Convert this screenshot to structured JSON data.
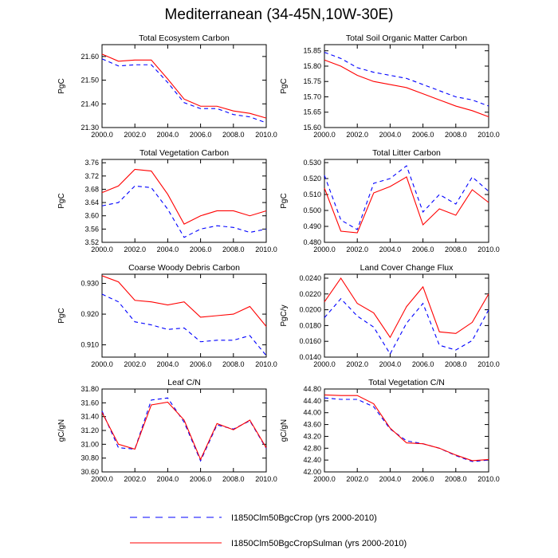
{
  "title": "Mediterranean (34-45N,10W-30E)",
  "legend": [
    {
      "label": "I1850Clm50BgcCrop (yrs 2000-2010)",
      "color": "#0000ff",
      "dash": true
    },
    {
      "label": "I1850Clm50BgcCropSulman (yrs 2000-2010)",
      "color": "#ff0000",
      "dash": false
    }
  ],
  "chart_data": [
    {
      "type": "line",
      "title": "Total Ecosystem Carbon",
      "ylabel": "PgC",
      "xlim": [
        2000,
        2010
      ],
      "xticks": [
        "2000.0",
        "2002.0",
        "2004.0",
        "2006.0",
        "2008.0",
        "2010.0"
      ],
      "ylim": [
        21.3,
        21.65
      ],
      "yticks": [
        "21.30",
        "21.40",
        "21.50",
        "21.60"
      ],
      "x": [
        2000,
        2001,
        2002,
        2003,
        2004,
        2005,
        2006,
        2007,
        2008,
        2009,
        2010
      ],
      "series": [
        {
          "values": [
            21.59,
            21.56,
            21.565,
            21.565,
            21.49,
            21.405,
            21.38,
            21.38,
            21.355,
            21.345,
            21.32
          ]
        },
        {
          "values": [
            21.61,
            21.58,
            21.585,
            21.585,
            21.505,
            21.42,
            21.39,
            21.39,
            21.37,
            21.36,
            21.34
          ]
        }
      ]
    },
    {
      "type": "line",
      "title": "Total Soil Organic Matter Carbon",
      "ylabel": "PgC",
      "xlim": [
        2000,
        2010
      ],
      "xticks": [
        "2000.0",
        "2002.0",
        "2004.0",
        "2006.0",
        "2008.0",
        "2010.0"
      ],
      "ylim": [
        15.6,
        15.87
      ],
      "yticks": [
        "15.60",
        "15.65",
        "15.70",
        "15.75",
        "15.80",
        "15.85"
      ],
      "x": [
        2000,
        2001,
        2002,
        2003,
        2004,
        2005,
        2006,
        2007,
        2008,
        2009,
        2010
      ],
      "series": [
        {
          "values": [
            15.845,
            15.825,
            15.795,
            15.78,
            15.77,
            15.76,
            15.74,
            15.72,
            15.7,
            15.69,
            15.67
          ]
        },
        {
          "values": [
            15.82,
            15.8,
            15.77,
            15.75,
            15.74,
            15.73,
            15.71,
            15.69,
            15.67,
            15.655,
            15.635
          ]
        }
      ]
    },
    {
      "type": "line",
      "title": "Total Vegetation Carbon",
      "ylabel": "PgC",
      "xlim": [
        2000,
        2010
      ],
      "xticks": [
        "2000.0",
        "2002.0",
        "2004.0",
        "2006.0",
        "2008.0",
        "2010.0"
      ],
      "ylim": [
        3.52,
        3.77
      ],
      "yticks": [
        "3.52",
        "3.56",
        "3.60",
        "3.64",
        "3.68",
        "3.72",
        "3.76"
      ],
      "x": [
        2000,
        2001,
        2002,
        2003,
        2004,
        2005,
        2006,
        2007,
        2008,
        2009,
        2010
      ],
      "series": [
        {
          "values": [
            3.63,
            3.64,
            3.69,
            3.685,
            3.62,
            3.535,
            3.56,
            3.57,
            3.565,
            3.55,
            3.56
          ]
        },
        {
          "values": [
            3.67,
            3.69,
            3.74,
            3.735,
            3.665,
            3.575,
            3.6,
            3.615,
            3.615,
            3.6,
            3.615
          ]
        }
      ]
    },
    {
      "type": "line",
      "title": "Total Litter Carbon",
      "ylabel": "PgC",
      "xlim": [
        2000,
        2010
      ],
      "xticks": [
        "2000.0",
        "2002.0",
        "2004.0",
        "2006.0",
        "2008.0",
        "2010.0"
      ],
      "ylim": [
        0.48,
        0.532
      ],
      "yticks": [
        "0.480",
        "0.490",
        "0.500",
        "0.510",
        "0.520",
        "0.530"
      ],
      "x": [
        2000,
        2001,
        2002,
        2003,
        2004,
        2005,
        2006,
        2007,
        2008,
        2009,
        2010
      ],
      "series": [
        {
          "values": [
            0.522,
            0.494,
            0.488,
            0.517,
            0.52,
            0.528,
            0.499,
            0.51,
            0.504,
            0.521,
            0.512
          ]
        },
        {
          "values": [
            0.514,
            0.487,
            0.486,
            0.511,
            0.515,
            0.521,
            0.491,
            0.501,
            0.497,
            0.513,
            0.505
          ]
        }
      ]
    },
    {
      "type": "line",
      "title": "Coarse Woody Debris Carbon",
      "ylabel": "PgC",
      "xlim": [
        2000,
        2010
      ],
      "xticks": [
        "2000.0",
        "2002.0",
        "2004.0",
        "2006.0",
        "2008.0",
        "2010.0"
      ],
      "ylim": [
        0.906,
        0.933
      ],
      "yticks": [
        "0.910",
        "0.920",
        "0.930"
      ],
      "x": [
        2000,
        2001,
        2002,
        2003,
        2004,
        2005,
        2006,
        2007,
        2008,
        2009,
        2010
      ],
      "series": [
        {
          "values": [
            0.9265,
            0.924,
            0.9175,
            0.9165,
            0.915,
            0.9155,
            0.911,
            0.9115,
            0.9115,
            0.913,
            0.9065
          ]
        },
        {
          "values": [
            0.9325,
            0.9305,
            0.9245,
            0.924,
            0.923,
            0.924,
            0.919,
            0.9195,
            0.92,
            0.9225,
            0.916
          ]
        }
      ]
    },
    {
      "type": "line",
      "title": "Land Cover Change Flux",
      "ylabel": "PgC/y",
      "xlim": [
        2000,
        2010
      ],
      "xticks": [
        "2000.0",
        "2002.0",
        "2004.0",
        "2006.0",
        "2008.0",
        "2010.0"
      ],
      "ylim": [
        0.014,
        0.0245
      ],
      "yticks": [
        "0.0140",
        "0.0160",
        "0.0180",
        "0.0200",
        "0.0220",
        "0.0240"
      ],
      "x": [
        2000,
        2001,
        2002,
        2003,
        2004,
        2005,
        2006,
        2007,
        2008,
        2009,
        2010
      ],
      "series": [
        {
          "values": [
            0.019,
            0.0214,
            0.0192,
            0.0178,
            0.0144,
            0.0183,
            0.0208,
            0.0155,
            0.0149,
            0.0161,
            0.02
          ]
        },
        {
          "values": [
            0.021,
            0.024,
            0.0208,
            0.0196,
            0.0165,
            0.0204,
            0.0229,
            0.0172,
            0.017,
            0.0184,
            0.022
          ]
        }
      ]
    },
    {
      "type": "line",
      "title": "Leaf C/N",
      "ylabel": "gC/gN",
      "xlim": [
        2000,
        2010
      ],
      "xticks": [
        "2000.0",
        "2002.0",
        "2004.0",
        "2006.0",
        "2008.0",
        "2010.0"
      ],
      "ylim": [
        30.6,
        31.8
      ],
      "yticks": [
        "30.60",
        "30.80",
        "31.00",
        "31.20",
        "31.40",
        "31.60",
        "31.80"
      ],
      "x": [
        2000,
        2001,
        2002,
        2003,
        2004,
        2005,
        2006,
        2007,
        2008,
        2009,
        2010
      ],
      "series": [
        {
          "values": [
            31.48,
            30.95,
            30.93,
            31.64,
            31.67,
            31.32,
            30.76,
            31.28,
            31.22,
            31.34,
            30.94
          ]
        },
        {
          "values": [
            31.46,
            31.0,
            30.93,
            31.57,
            31.61,
            31.35,
            30.78,
            31.3,
            31.21,
            31.35,
            30.95
          ]
        }
      ]
    },
    {
      "type": "line",
      "title": "Total Vegetation C/N",
      "ylabel": "gC/gN",
      "xlim": [
        2000,
        2010
      ],
      "xticks": [
        "2000.0",
        "2002.0",
        "2004.0",
        "2006.0",
        "2008.0",
        "2010.0"
      ],
      "ylim": [
        42.0,
        44.8
      ],
      "yticks": [
        "42.00",
        "42.40",
        "42.80",
        "43.20",
        "43.60",
        "44.00",
        "44.40",
        "44.80"
      ],
      "x": [
        2000,
        2001,
        2002,
        2003,
        2004,
        2005,
        2006,
        2007,
        2008,
        2009,
        2010
      ],
      "series": [
        {
          "values": [
            44.5,
            44.45,
            44.45,
            44.2,
            43.45,
            43.05,
            42.95,
            42.8,
            42.55,
            42.35,
            42.4
          ]
        },
        {
          "values": [
            44.6,
            44.58,
            44.58,
            44.3,
            43.48,
            42.98,
            42.95,
            42.8,
            42.57,
            42.38,
            42.42
          ]
        }
      ]
    }
  ]
}
